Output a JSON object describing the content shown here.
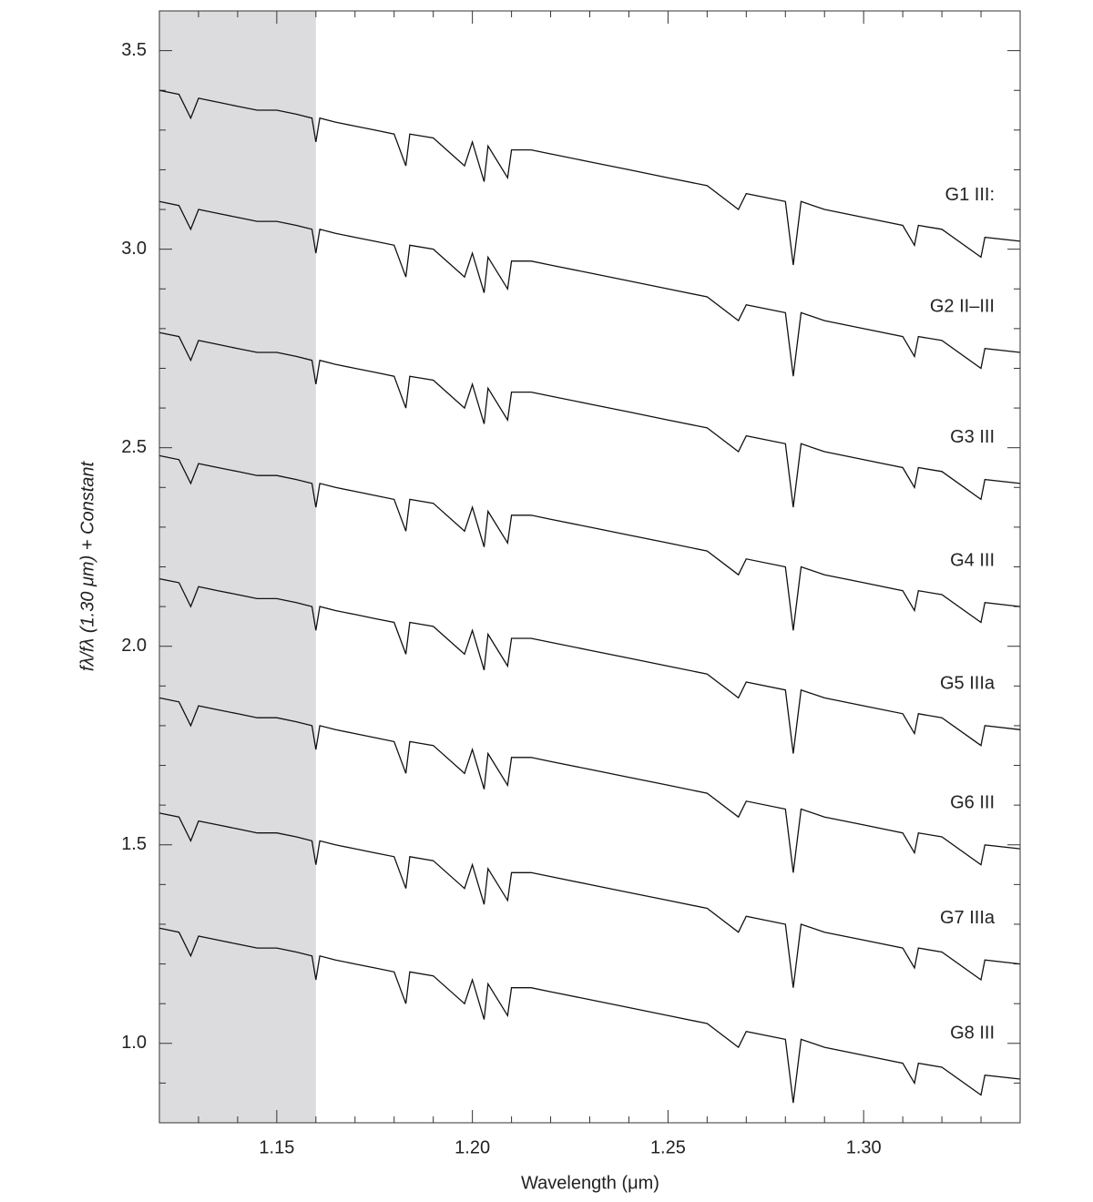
{
  "chart_data": {
    "type": "line",
    "x_label": "Wavelength (μm)",
    "y_label": "fλ/fλ (1.30 μm) + Constant",
    "xlim": [
      1.12,
      1.34
    ],
    "ylim": [
      0.8,
      3.6
    ],
    "xticks": [
      1.15,
      {
        "value": 1.2,
        "label": "1.20"
      },
      1.25,
      {
        "value": 1.3,
        "label": "1.30"
      }
    ],
    "yticks": [
      {
        "value": 1,
        "label": "1.0"
      },
      1.5,
      {
        "value": 2,
        "label": "2.0"
      },
      2.5,
      {
        "value": 3,
        "label": "3.0"
      },
      3.5
    ],
    "xminor_ticks": [
      1.12,
      1.13,
      1.14,
      1.16,
      1.17,
      1.18,
      1.19,
      1.21,
      1.22,
      1.23,
      1.24,
      1.26,
      1.27,
      1.28,
      1.29,
      1.31,
      1.32,
      1.33,
      1.34
    ],
    "yminor_ticks": [
      0.8,
      0.9,
      1.1,
      1.2,
      1.3,
      1.4,
      1.6,
      1.7,
      1.8,
      1.9,
      2.1,
      2.2,
      2.3,
      2.4,
      2.6,
      2.7,
      2.8,
      2.9,
      3.1,
      3.2,
      3.3,
      3.4,
      3.6
    ],
    "shaded_region": [
      1.12,
      1.16
    ],
    "shade_color": "#dcdcde",
    "x": [
      1.12,
      1.125,
      1.128,
      1.13,
      1.135,
      1.14,
      1.145,
      1.15,
      1.155,
      1.159,
      1.16,
      1.161,
      1.165,
      1.17,
      1.175,
      1.18,
      1.183,
      1.184,
      1.19,
      1.198,
      1.2,
      1.203,
      1.204,
      1.209,
      1.21,
      1.215,
      1.22,
      1.23,
      1.24,
      1.25,
      1.26,
      1.268,
      1.27,
      1.28,
      1.282,
      1.284,
      1.29,
      1.3,
      1.31,
      1.313,
      1.314,
      1.32,
      1.33,
      1.331,
      1.34
    ],
    "series": [
      {
        "name": "G1 III:",
        "color": "#111111",
        "values": [
          3.4,
          3.39,
          3.33,
          3.38,
          3.37,
          3.36,
          3.35,
          3.35,
          3.34,
          3.33,
          3.27,
          3.33,
          3.32,
          3.31,
          3.3,
          3.29,
          3.21,
          3.29,
          3.28,
          3.21,
          3.27,
          3.17,
          3.26,
          3.18,
          3.25,
          3.25,
          3.24,
          3.22,
          3.2,
          3.18,
          3.16,
          3.1,
          3.14,
          3.12,
          2.96,
          3.12,
          3.1,
          3.08,
          3.06,
          3.01,
          3.06,
          3.05,
          2.98,
          3.03,
          3.02
        ]
      },
      {
        "name": "G2 II–III",
        "color": "#111111",
        "values": [
          3.12,
          3.11,
          3.05,
          3.1,
          3.09,
          3.08,
          3.07,
          3.07,
          3.06,
          3.05,
          2.99,
          3.05,
          3.04,
          3.03,
          3.02,
          3.01,
          2.93,
          3.01,
          3.0,
          2.93,
          2.99,
          2.89,
          2.98,
          2.9,
          2.97,
          2.97,
          2.96,
          2.94,
          2.92,
          2.9,
          2.88,
          2.82,
          2.86,
          2.84,
          2.68,
          2.84,
          2.82,
          2.8,
          2.78,
          2.73,
          2.78,
          2.77,
          2.7,
          2.75,
          2.74
        ]
      },
      {
        "name": "G3 III",
        "color": "#111111",
        "values": [
          2.79,
          2.78,
          2.72,
          2.77,
          2.76,
          2.75,
          2.74,
          2.74,
          2.73,
          2.72,
          2.66,
          2.72,
          2.71,
          2.7,
          2.69,
          2.68,
          2.6,
          2.68,
          2.67,
          2.6,
          2.66,
          2.56,
          2.65,
          2.57,
          2.64,
          2.64,
          2.63,
          2.61,
          2.59,
          2.57,
          2.55,
          2.49,
          2.53,
          2.51,
          2.35,
          2.51,
          2.49,
          2.47,
          2.45,
          2.4,
          2.45,
          2.44,
          2.37,
          2.42,
          2.41
        ]
      },
      {
        "name": "G4 III",
        "color": "#111111",
        "values": [
          2.48,
          2.47,
          2.41,
          2.46,
          2.45,
          2.44,
          2.43,
          2.43,
          2.42,
          2.41,
          2.35,
          2.41,
          2.4,
          2.39,
          2.38,
          2.37,
          2.29,
          2.37,
          2.36,
          2.29,
          2.35,
          2.25,
          2.34,
          2.26,
          2.33,
          2.33,
          2.32,
          2.3,
          2.28,
          2.26,
          2.24,
          2.18,
          2.22,
          2.2,
          2.04,
          2.2,
          2.18,
          2.16,
          2.14,
          2.09,
          2.14,
          2.13,
          2.06,
          2.11,
          2.1
        ]
      },
      {
        "name": "G5 IIIa",
        "color": "#111111",
        "values": [
          2.17,
          2.16,
          2.1,
          2.15,
          2.14,
          2.13,
          2.12,
          2.12,
          2.11,
          2.1,
          2.04,
          2.1,
          2.09,
          2.08,
          2.07,
          2.06,
          1.98,
          2.06,
          2.05,
          1.98,
          2.04,
          1.94,
          2.03,
          1.95,
          2.02,
          2.02,
          2.01,
          1.99,
          1.97,
          1.95,
          1.93,
          1.87,
          1.91,
          1.89,
          1.73,
          1.89,
          1.87,
          1.85,
          1.83,
          1.78,
          1.83,
          1.82,
          1.75,
          1.8,
          1.79
        ]
      },
      {
        "name": "G6 III",
        "color": "#111111",
        "values": [
          1.87,
          1.86,
          1.8,
          1.85,
          1.84,
          1.83,
          1.82,
          1.82,
          1.81,
          1.8,
          1.74,
          1.8,
          1.79,
          1.78,
          1.77,
          1.76,
          1.68,
          1.76,
          1.75,
          1.68,
          1.74,
          1.64,
          1.73,
          1.65,
          1.72,
          1.72,
          1.71,
          1.69,
          1.67,
          1.65,
          1.63,
          1.57,
          1.61,
          1.59,
          1.43,
          1.59,
          1.57,
          1.55,
          1.53,
          1.48,
          1.53,
          1.52,
          1.45,
          1.5,
          1.49
        ]
      },
      {
        "name": "G7 IIIa",
        "color": "#111111",
        "values": [
          1.58,
          1.57,
          1.51,
          1.56,
          1.55,
          1.54,
          1.53,
          1.53,
          1.52,
          1.51,
          1.45,
          1.51,
          1.5,
          1.49,
          1.48,
          1.47,
          1.39,
          1.47,
          1.46,
          1.39,
          1.45,
          1.35,
          1.44,
          1.36,
          1.43,
          1.43,
          1.42,
          1.4,
          1.38,
          1.36,
          1.34,
          1.28,
          1.32,
          1.3,
          1.14,
          1.3,
          1.28,
          1.26,
          1.24,
          1.19,
          1.24,
          1.23,
          1.16,
          1.21,
          1.2
        ]
      },
      {
        "name": "G8 III",
        "color": "#111111",
        "values": [
          1.29,
          1.28,
          1.22,
          1.27,
          1.26,
          1.25,
          1.24,
          1.24,
          1.23,
          1.22,
          1.16,
          1.22,
          1.21,
          1.2,
          1.19,
          1.18,
          1.1,
          1.18,
          1.17,
          1.1,
          1.16,
          1.06,
          1.15,
          1.07,
          1.14,
          1.14,
          1.13,
          1.11,
          1.09,
          1.07,
          1.05,
          0.99,
          1.03,
          1.01,
          0.85,
          1.01,
          0.99,
          0.97,
          0.95,
          0.9,
          0.95,
          0.94,
          0.87,
          0.92,
          0.91
        ]
      }
    ]
  }
}
